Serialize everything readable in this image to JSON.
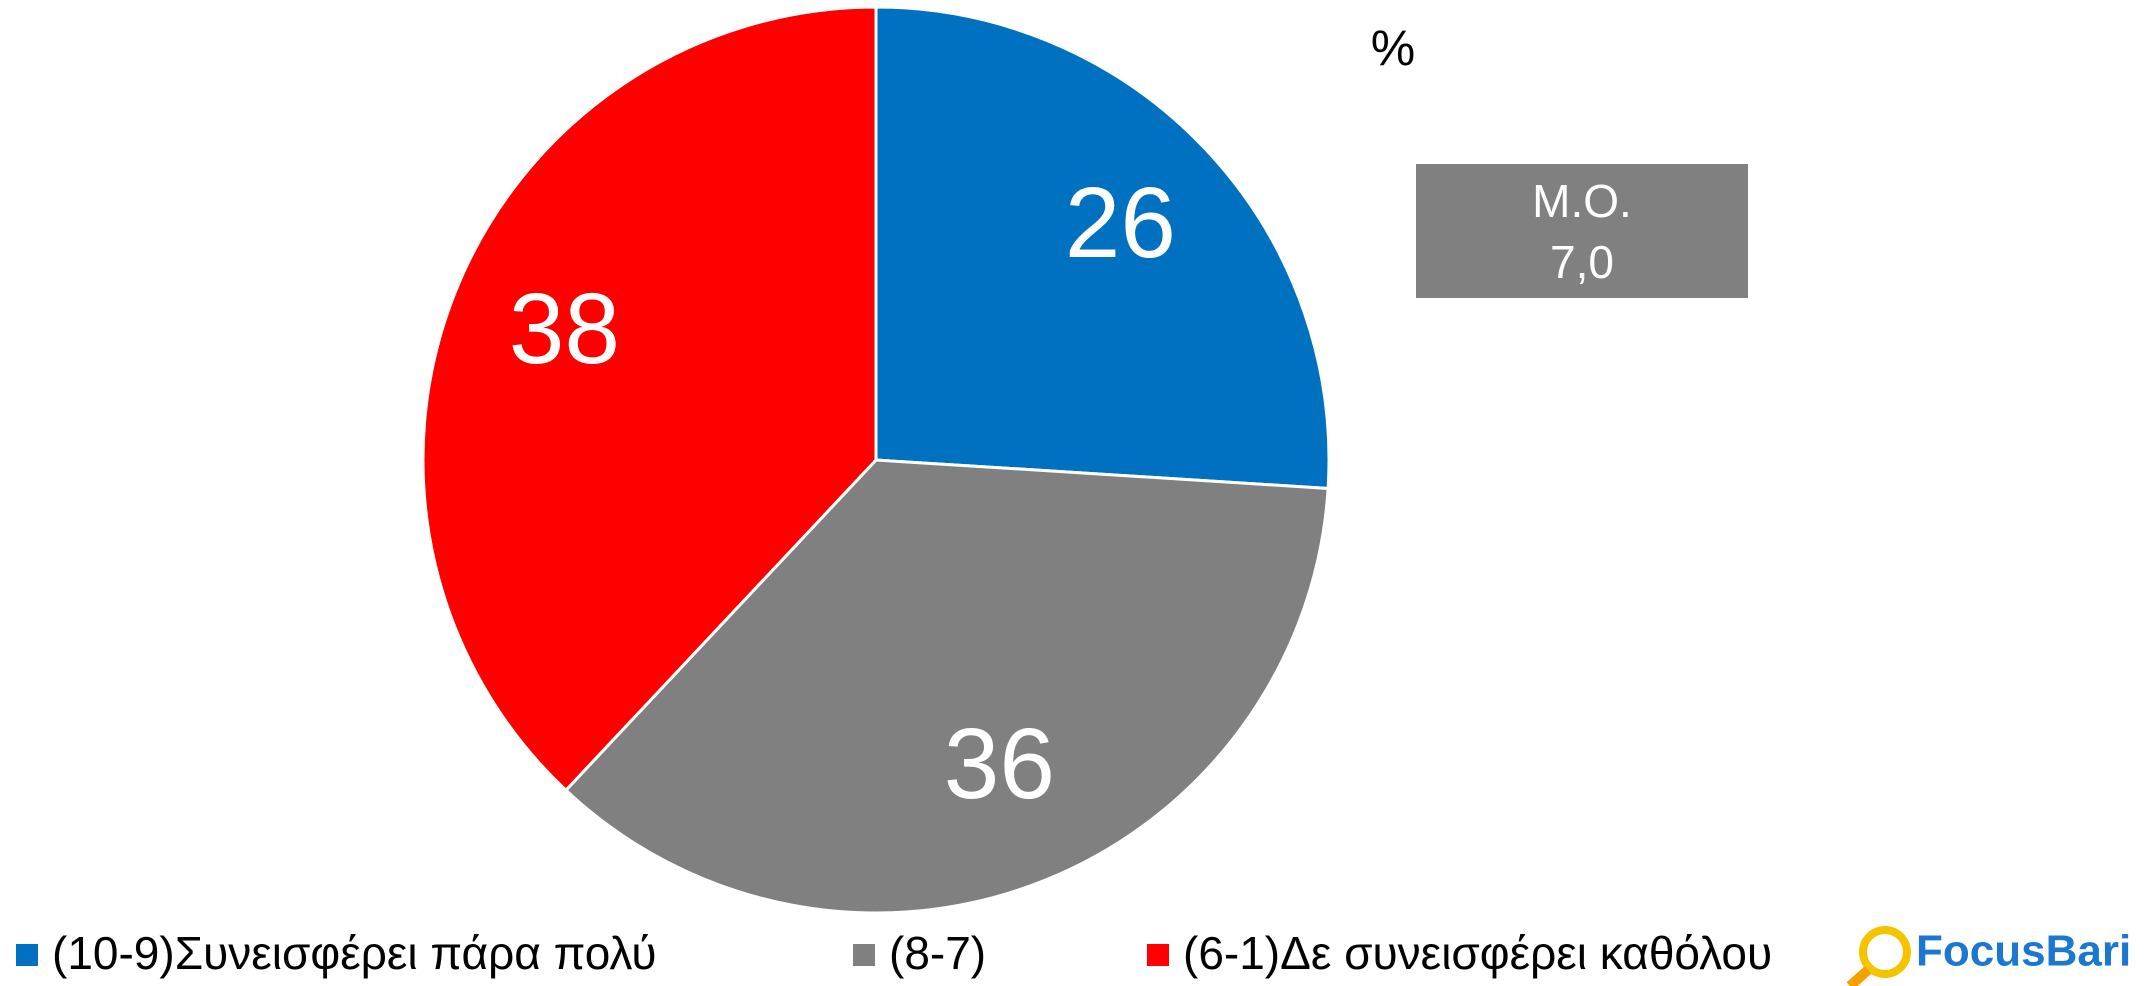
{
  "chart_data": {
    "type": "pie",
    "unit_label": "%",
    "categories": [
      "(10-9)Συνεισφέρει πάρα πολύ",
      "(8-7)",
      "(6-1)Δε συνεισφέρει καθόλου"
    ],
    "values": [
      26,
      36,
      38
    ],
    "colors": [
      "#0070c0",
      "#808080",
      "#ff0000"
    ],
    "annotation": {
      "label": "Μ.Ο.",
      "value": "7,0"
    }
  },
  "logo": "FocusBari"
}
